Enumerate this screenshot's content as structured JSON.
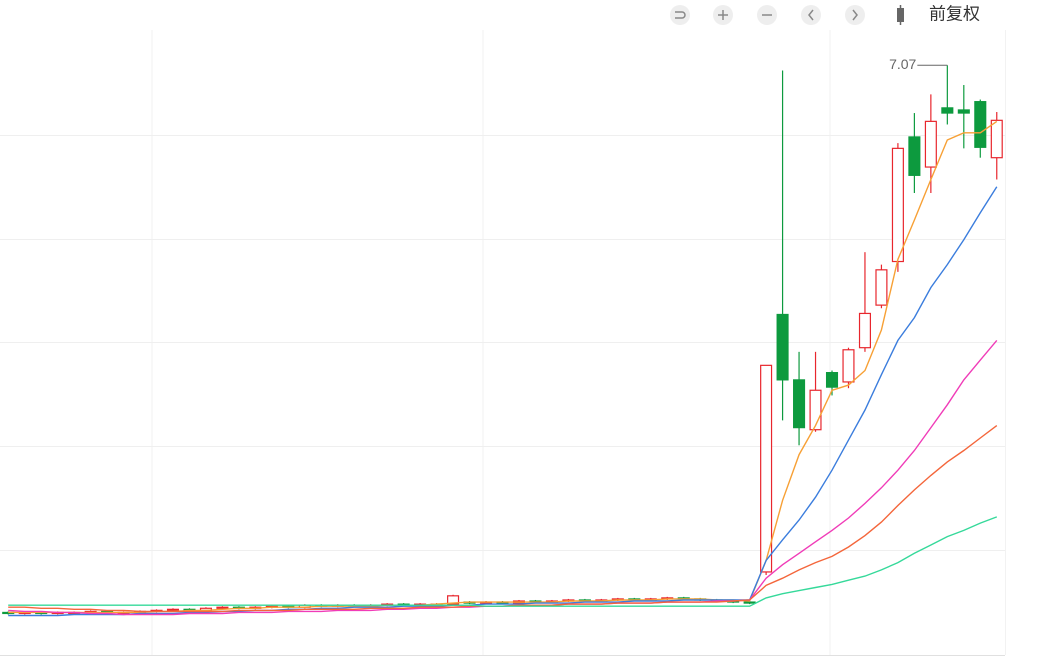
{
  "toolbar": {
    "label": "前复权"
  },
  "chart_data": {
    "type": "candlestick",
    "categories": [
      null,
      null,
      null,
      null,
      null,
      null,
      null,
      null,
      null,
      null,
      null,
      null,
      null,
      null,
      null,
      null,
      null,
      null,
      null,
      null,
      null,
      null,
      null,
      null,
      null,
      null,
      null,
      null,
      null,
      null,
      null,
      null,
      null,
      null,
      null,
      null,
      null,
      null,
      null,
      null,
      null,
      null,
      null,
      null,
      null,
      null,
      null,
      null,
      null,
      null,
      null,
      null,
      null,
      null,
      null,
      null,
      null,
      null,
      null,
      null,
      null
    ],
    "open": [
      1.8,
      1.79,
      1.8,
      1.79,
      1.8,
      1.8,
      1.81,
      1.8,
      1.8,
      1.81,
      1.82,
      1.83,
      1.82,
      1.84,
      1.85,
      1.84,
      1.85,
      1.86,
      1.85,
      1.87,
      1.86,
      1.87,
      1.86,
      1.87,
      1.88,
      1.87,
      1.88,
      1.88,
      1.9,
      1.89,
      1.9,
      1.89,
      1.91,
      1.9,
      1.91,
      1.92,
      1.91,
      1.92,
      1.93,
      1.92,
      1.93,
      1.94,
      1.93,
      1.92,
      1.91,
      1.9,
      2.19,
      4.67,
      4.04,
      3.56,
      4.11,
      4.02,
      4.35,
      4.76,
      5.18,
      6.38,
      6.09,
      6.66,
      6.64,
      6.72,
      6.18
    ],
    "close": [
      1.79,
      1.8,
      1.79,
      1.8,
      1.8,
      1.81,
      1.8,
      1.8,
      1.81,
      1.82,
      1.83,
      1.82,
      1.84,
      1.85,
      1.84,
      1.85,
      1.86,
      1.85,
      1.87,
      1.86,
      1.87,
      1.86,
      1.87,
      1.88,
      1.87,
      1.88,
      1.88,
      1.96,
      1.89,
      1.9,
      1.89,
      1.91,
      1.9,
      1.91,
      1.92,
      1.91,
      1.92,
      1.93,
      1.92,
      1.93,
      1.94,
      1.93,
      1.92,
      1.91,
      1.9,
      1.89,
      4.18,
      4.04,
      3.58,
      3.94,
      3.97,
      4.33,
      4.68,
      5.1,
      6.27,
      6.01,
      6.53,
      6.61,
      6.61,
      6.28,
      6.54
    ],
    "high": [
      1.81,
      1.81,
      1.81,
      1.81,
      1.81,
      1.82,
      1.82,
      1.81,
      1.82,
      1.83,
      1.84,
      1.84,
      1.85,
      1.86,
      1.86,
      1.86,
      1.87,
      1.87,
      1.88,
      1.88,
      1.88,
      1.88,
      1.88,
      1.89,
      1.89,
      1.89,
      1.89,
      1.97,
      1.91,
      1.91,
      1.91,
      1.92,
      1.92,
      1.92,
      1.93,
      1.93,
      1.93,
      1.94,
      1.94,
      1.94,
      1.95,
      1.95,
      1.94,
      1.93,
      1.92,
      1.91,
      4.18,
      7.02,
      4.31,
      4.31,
      4.13,
      4.35,
      5.27,
      5.15,
      6.32,
      6.61,
      6.79,
      7.07,
      6.88,
      6.74,
      6.62
    ],
    "low": [
      1.78,
      1.78,
      1.78,
      1.78,
      1.79,
      1.79,
      1.79,
      1.79,
      1.79,
      1.8,
      1.81,
      1.81,
      1.81,
      1.83,
      1.83,
      1.83,
      1.84,
      1.84,
      1.84,
      1.85,
      1.85,
      1.85,
      1.85,
      1.86,
      1.86,
      1.86,
      1.87,
      1.87,
      1.88,
      1.88,
      1.88,
      1.88,
      1.89,
      1.89,
      1.9,
      1.9,
      1.9,
      1.91,
      1.91,
      1.91,
      1.92,
      1.92,
      1.91,
      1.9,
      1.89,
      1.88,
      2.16,
      3.65,
      3.41,
      3.54,
      3.89,
      3.96,
      4.31,
      4.73,
      5.08,
      5.84,
      5.84,
      6.5,
      6.27,
      6.18,
      5.97
    ],
    "up_color": "#e8262d",
    "down_color": "#0d9a3e",
    "ma": [
      {
        "color": "#f7a035",
        "values": [
          1.8,
          1.8,
          1.8,
          1.8,
          1.8,
          1.8,
          1.8,
          1.8,
          1.8,
          1.81,
          1.81,
          1.82,
          1.82,
          1.83,
          1.84,
          1.84,
          1.85,
          1.85,
          1.85,
          1.86,
          1.86,
          1.86,
          1.86,
          1.87,
          1.87,
          1.87,
          1.88,
          1.89,
          1.9,
          1.9,
          1.9,
          1.9,
          1.9,
          1.9,
          1.91,
          1.91,
          1.91,
          1.92,
          1.92,
          1.92,
          1.93,
          1.93,
          1.93,
          1.92,
          1.92,
          1.91,
          2.3,
          2.88,
          3.32,
          3.6,
          3.94,
          3.99,
          4.13,
          4.52,
          5.2,
          5.58,
          5.97,
          6.35,
          6.42,
          6.42,
          6.53
        ]
      },
      {
        "color": "#3b7ddd",
        "values": [
          1.77,
          1.77,
          1.77,
          1.77,
          1.78,
          1.78,
          1.78,
          1.78,
          1.79,
          1.79,
          1.79,
          1.8,
          1.8,
          1.81,
          1.81,
          1.82,
          1.82,
          1.83,
          1.83,
          1.84,
          1.84,
          1.85,
          1.85,
          1.85,
          1.86,
          1.86,
          1.86,
          1.87,
          1.87,
          1.88,
          1.88,
          1.88,
          1.89,
          1.89,
          1.89,
          1.9,
          1.9,
          1.9,
          1.91,
          1.91,
          1.91,
          1.92,
          1.92,
          1.92,
          1.92,
          1.92,
          2.3,
          2.5,
          2.69,
          2.91,
          3.17,
          3.46,
          3.75,
          4.09,
          4.42,
          4.64,
          4.93,
          5.15,
          5.39,
          5.65,
          5.9
        ]
      },
      {
        "color": "#f03cb8",
        "values": [
          1.82,
          1.81,
          1.81,
          1.8,
          1.8,
          1.79,
          1.79,
          1.78,
          1.78,
          1.78,
          1.78,
          1.79,
          1.79,
          1.79,
          1.8,
          1.8,
          1.8,
          1.81,
          1.81,
          1.81,
          1.82,
          1.82,
          1.82,
          1.83,
          1.83,
          1.84,
          1.84,
          1.85,
          1.85,
          1.86,
          1.86,
          1.87,
          1.87,
          1.87,
          1.88,
          1.88,
          1.88,
          1.89,
          1.89,
          1.89,
          1.9,
          1.9,
          1.9,
          1.91,
          1.91,
          1.92,
          2.13,
          2.26,
          2.37,
          2.48,
          2.59,
          2.71,
          2.85,
          3.0,
          3.17,
          3.36,
          3.58,
          3.8,
          4.04,
          4.23,
          4.42
        ]
      },
      {
        "color": "#f4663b",
        "values": [
          1.85,
          1.85,
          1.84,
          1.84,
          1.83,
          1.83,
          1.82,
          1.82,
          1.81,
          1.81,
          1.81,
          1.81,
          1.81,
          1.81,
          1.82,
          1.82,
          1.82,
          1.82,
          1.83,
          1.83,
          1.83,
          1.83,
          1.84,
          1.84,
          1.84,
          1.85,
          1.85,
          1.85,
          1.86,
          1.86,
          1.86,
          1.87,
          1.87,
          1.87,
          1.88,
          1.88,
          1.88,
          1.89,
          1.89,
          1.89,
          1.9,
          1.9,
          1.9,
          1.9,
          1.91,
          1.92,
          2.06,
          2.13,
          2.21,
          2.28,
          2.34,
          2.43,
          2.54,
          2.67,
          2.83,
          2.98,
          3.12,
          3.25,
          3.36,
          3.48,
          3.6
        ]
      },
      {
        "color": "#35d99a",
        "values": [
          1.87,
          1.87,
          1.87,
          1.87,
          1.87,
          1.87,
          1.87,
          1.87,
          1.87,
          1.87,
          1.87,
          1.87,
          1.87,
          1.87,
          1.87,
          1.87,
          1.87,
          1.87,
          1.87,
          1.87,
          1.87,
          1.87,
          1.87,
          1.87,
          1.87,
          1.87,
          1.87,
          1.87,
          1.87,
          1.86,
          1.86,
          1.86,
          1.86,
          1.86,
          1.86,
          1.86,
          1.86,
          1.86,
          1.86,
          1.86,
          1.86,
          1.86,
          1.86,
          1.86,
          1.86,
          1.86,
          1.94,
          1.98,
          2.01,
          2.04,
          2.07,
          2.11,
          2.15,
          2.21,
          2.28,
          2.37,
          2.45,
          2.53,
          2.59,
          2.66,
          2.72
        ]
      }
    ],
    "ylim": [
      1.39,
      7.41
    ],
    "ygrid": [
      2.4,
      3.4,
      4.4,
      5.4,
      6.4
    ],
    "grid": true
  }
}
